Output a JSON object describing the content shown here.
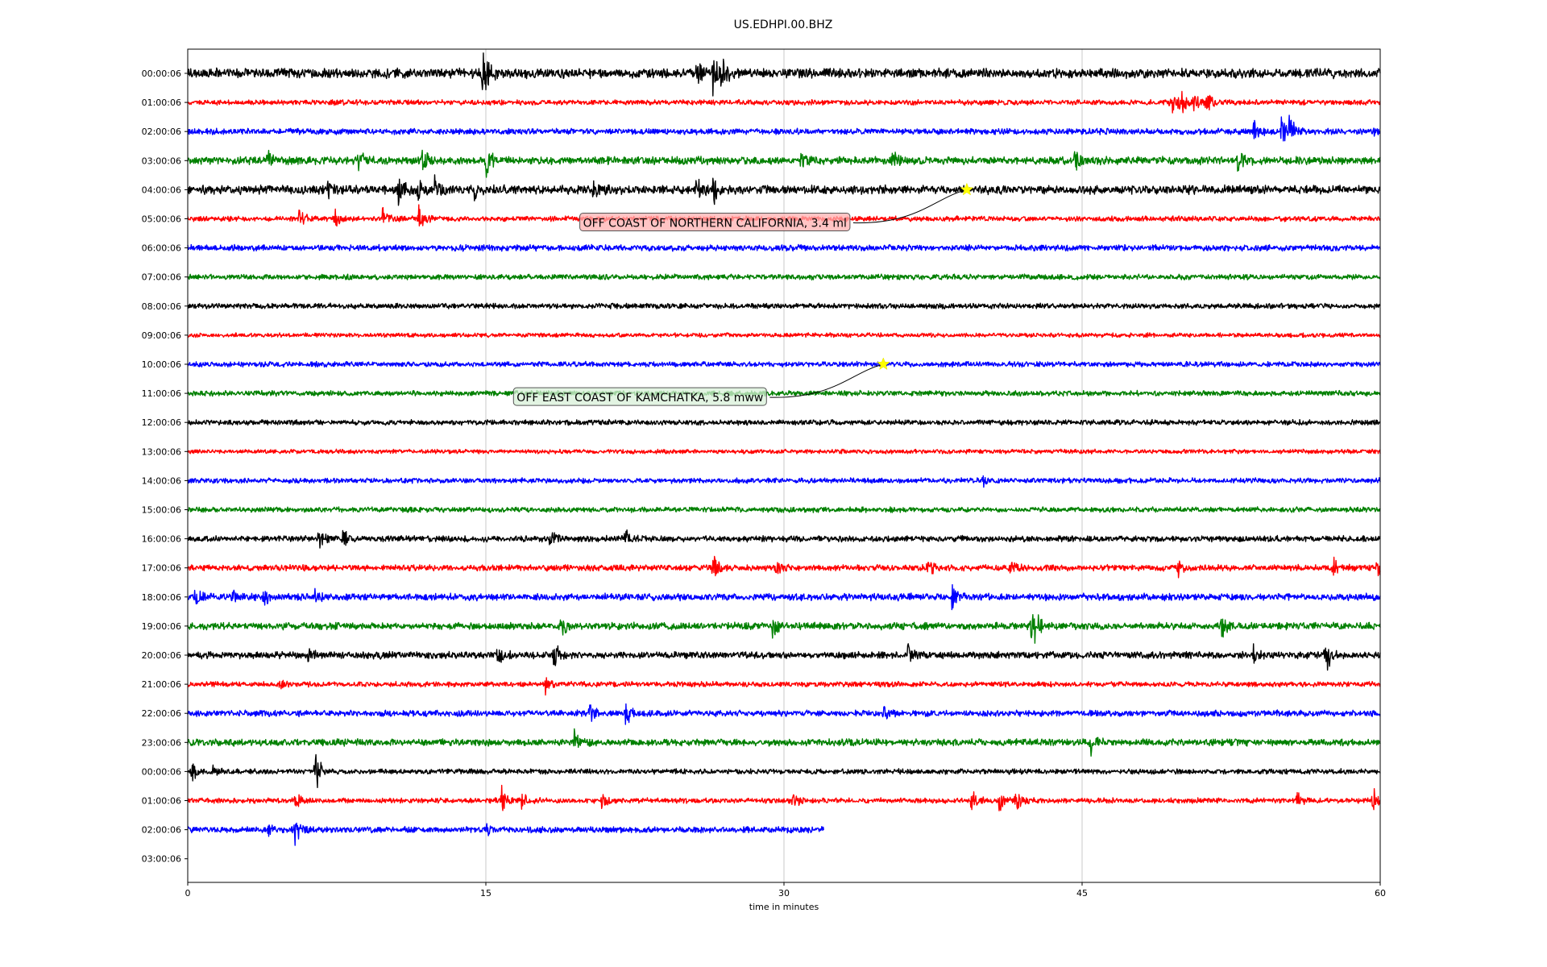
{
  "chart_data": {
    "type": "line",
    "title": "US.EDHPI.00.BHZ",
    "xlabel": "time in minutes",
    "ylabel": "",
    "xlim": [
      0,
      60
    ],
    "x_ticks": [
      0,
      15,
      30,
      45,
      60
    ],
    "grid": "vertical",
    "colors": [
      "#000000",
      "#ff0000",
      "#0000ff",
      "#008000"
    ],
    "rows": [
      {
        "label": "00:00:06",
        "events": [
          [
            14.8,
            1.0
          ],
          [
            15.0,
            0.7
          ],
          [
            25.6,
            0.6
          ],
          [
            26.4,
            1.0
          ],
          [
            26.8,
            0.9
          ]
        ],
        "noise": 0.22,
        "end": 60
      },
      {
        "label": "01:00:06",
        "events": [
          [
            49.4,
            0.6
          ],
          [
            49.8,
            1.2
          ],
          [
            50.6,
            0.8
          ],
          [
            51.2,
            0.7
          ]
        ],
        "noise": 0.12,
        "end": 60
      },
      {
        "label": "02:00:06",
        "events": [
          [
            53.6,
            0.6
          ],
          [
            55.0,
            0.7
          ],
          [
            55.4,
            1.0
          ],
          [
            59.6,
            0.4
          ]
        ],
        "noise": 0.14,
        "end": 60
      },
      {
        "label": "03:00:06",
        "events": [
          [
            4.0,
            0.5
          ],
          [
            8.6,
            0.6
          ],
          [
            11.8,
            0.7
          ],
          [
            15.0,
            0.6
          ],
          [
            30.8,
            0.4
          ],
          [
            35.4,
            0.5
          ],
          [
            44.6,
            0.6
          ],
          [
            52.8,
            0.6
          ]
        ],
        "noise": 0.18,
        "end": 60
      },
      {
        "label": "04:00:06",
        "events": [
          [
            7.0,
            0.4
          ],
          [
            10.6,
            0.7
          ],
          [
            11.6,
            0.8
          ],
          [
            12.4,
            0.6
          ],
          [
            14.4,
            0.5
          ],
          [
            20.4,
            0.7
          ],
          [
            25.6,
            0.6
          ],
          [
            26.4,
            0.8
          ]
        ],
        "noise": 0.2,
        "end": 60
      },
      {
        "label": "05:00:06",
        "events": [
          [
            5.6,
            0.6
          ],
          [
            7.4,
            0.5
          ],
          [
            9.8,
            0.5
          ],
          [
            11.6,
            0.6
          ]
        ],
        "noise": 0.12,
        "end": 60
      },
      {
        "label": "06:00:06",
        "events": [],
        "noise": 0.14,
        "end": 60
      },
      {
        "label": "07:00:06",
        "events": [],
        "noise": 0.12,
        "end": 60
      },
      {
        "label": "08:00:06",
        "events": [],
        "noise": 0.12,
        "end": 60
      },
      {
        "label": "09:00:06",
        "events": [],
        "noise": 0.1,
        "end": 60
      },
      {
        "label": "10:00:06",
        "events": [],
        "noise": 0.12,
        "end": 60
      },
      {
        "label": "11:00:06",
        "events": [],
        "noise": 0.12,
        "end": 60
      },
      {
        "label": "12:00:06",
        "events": [],
        "noise": 0.12,
        "end": 60
      },
      {
        "label": "13:00:06",
        "events": [],
        "noise": 0.1,
        "end": 60
      },
      {
        "label": "14:00:06",
        "events": [
          [
            40.0,
            0.3
          ]
        ],
        "noise": 0.12,
        "end": 60
      },
      {
        "label": "15:00:06",
        "events": [],
        "noise": 0.12,
        "end": 60
      },
      {
        "label": "16:00:06",
        "events": [
          [
            6.6,
            0.6
          ],
          [
            7.8,
            0.5
          ],
          [
            18.2,
            0.5
          ],
          [
            22.0,
            0.5
          ]
        ],
        "noise": 0.14,
        "end": 60
      },
      {
        "label": "17:00:06",
        "events": [
          [
            26.4,
            0.7
          ],
          [
            29.6,
            0.5
          ],
          [
            37.2,
            0.6
          ],
          [
            41.4,
            0.5
          ],
          [
            49.8,
            0.5
          ],
          [
            57.6,
            0.6
          ],
          [
            59.8,
            0.5
          ]
        ],
        "noise": 0.14,
        "end": 60
      },
      {
        "label": "18:00:06",
        "events": [
          [
            0.4,
            0.4
          ],
          [
            2.2,
            0.5
          ],
          [
            3.8,
            0.5
          ],
          [
            6.4,
            0.4
          ],
          [
            38.4,
            0.6
          ]
        ],
        "noise": 0.16,
        "end": 60
      },
      {
        "label": "19:00:06",
        "events": [
          [
            18.8,
            0.8
          ],
          [
            29.4,
            0.6
          ],
          [
            42.4,
            0.9
          ],
          [
            42.6,
            1.0
          ],
          [
            52.0,
            0.7
          ]
        ],
        "noise": 0.16,
        "end": 60
      },
      {
        "label": "20:00:06",
        "events": [
          [
            6.0,
            0.4
          ],
          [
            15.6,
            0.5
          ],
          [
            18.4,
            0.8
          ],
          [
            36.2,
            0.7
          ],
          [
            53.6,
            0.6
          ],
          [
            57.2,
            1.0
          ]
        ],
        "noise": 0.16,
        "end": 60
      },
      {
        "label": "21:00:06",
        "events": [
          [
            4.6,
            0.4
          ],
          [
            18.0,
            0.5
          ]
        ],
        "noise": 0.12,
        "end": 60
      },
      {
        "label": "22:00:06",
        "events": [
          [
            20.2,
            0.8
          ],
          [
            22.0,
            0.7
          ],
          [
            35.0,
            0.4
          ]
        ],
        "noise": 0.14,
        "end": 60
      },
      {
        "label": "23:00:06",
        "events": [
          [
            19.4,
            0.7
          ],
          [
            45.4,
            0.6
          ]
        ],
        "noise": 0.16,
        "end": 60
      },
      {
        "label": "00:00:06",
        "events": [
          [
            0.2,
            0.6
          ],
          [
            1.2,
            0.5
          ],
          [
            6.4,
            1.2
          ]
        ],
        "noise": 0.12,
        "end": 60
      },
      {
        "label": "01:00:06",
        "events": [
          [
            5.4,
            0.4
          ],
          [
            15.8,
            0.6
          ],
          [
            16.8,
            0.4
          ],
          [
            20.8,
            0.4
          ],
          [
            30.4,
            0.5
          ],
          [
            39.4,
            0.6
          ],
          [
            40.8,
            0.8
          ],
          [
            41.6,
            0.6
          ],
          [
            55.8,
            0.5
          ],
          [
            59.6,
            0.7
          ]
        ],
        "noise": 0.12,
        "end": 60
      },
      {
        "label": "02:00:06",
        "events": [
          [
            4.0,
            0.4
          ],
          [
            5.4,
            0.6
          ],
          [
            15.0,
            0.4
          ]
        ],
        "noise": 0.14,
        "end": 32
      },
      {
        "label": "03:00:06",
        "events": [],
        "noise": 0,
        "end": 0
      }
    ],
    "annotations": [
      {
        "text": "OFF COAST OF NORTHERN CALIFORNIA, 3.4 ml",
        "row": 4,
        "x": 39.2,
        "box_color": "#ffb0b0"
      },
      {
        "text": "OFF EAST COAST OF KAMCHATKA, 5.8 mww",
        "row": 10,
        "x": 35.0,
        "box_color": "#d8f0d8"
      }
    ]
  }
}
